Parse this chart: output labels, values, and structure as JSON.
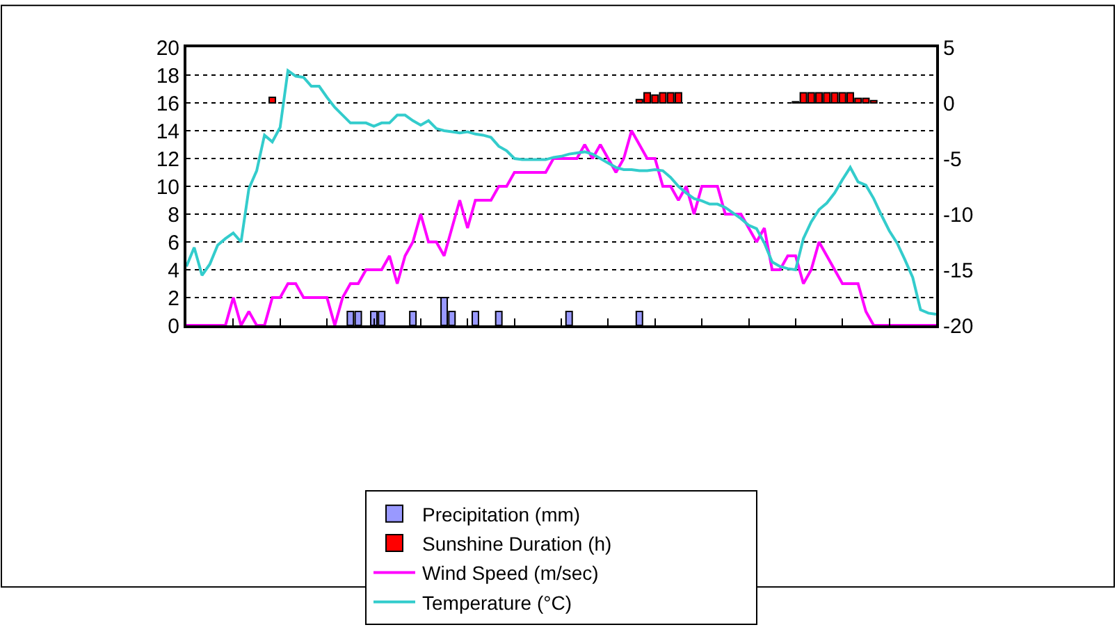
{
  "chart_data": {
    "type": "bar",
    "categories": [
      null,
      null,
      null,
      null,
      null,
      null,
      null,
      null,
      null,
      null,
      null,
      null,
      null,
      null,
      null,
      null,
      null,
      null,
      null,
      null,
      null,
      null,
      null,
      null,
      null,
      null,
      null,
      null,
      null,
      null,
      null,
      null,
      null,
      null,
      null,
      null,
      null,
      null,
      null,
      null,
      null,
      null,
      null,
      null,
      null,
      null,
      null,
      null,
      null,
      null,
      null,
      null,
      null,
      null,
      null,
      null,
      null,
      null,
      null,
      null,
      null,
      null,
      null,
      null,
      null,
      null,
      null,
      null,
      null,
      null,
      null,
      null,
      null,
      null,
      null,
      null,
      null,
      null,
      null,
      null,
      null,
      null,
      null,
      null,
      null,
      null,
      null,
      null,
      null,
      null,
      null,
      null,
      null,
      null,
      null,
      null,
      null
    ],
    "series": [
      {
        "name": "Precipitation (mm)",
        "color": "#9999ff",
        "values": [
          null,
          null,
          null,
          null,
          null,
          null,
          null,
          null,
          null,
          null,
          null,
          null,
          null,
          null,
          null,
          null,
          null,
          null,
          null,
          null,
          null,
          1,
          1,
          null,
          1,
          1,
          null,
          null,
          null,
          1,
          null,
          null,
          null,
          2,
          1,
          null,
          null,
          1,
          null,
          null,
          1,
          null,
          null,
          null,
          null,
          null,
          null,
          null,
          null,
          1,
          null,
          null,
          null,
          null,
          null,
          null,
          null,
          null,
          1,
          null,
          null,
          null,
          null,
          null,
          null,
          null,
          null,
          null,
          null,
          null,
          null,
          null,
          null,
          null,
          null,
          null,
          null,
          null,
          null,
          null,
          null,
          null,
          null,
          null,
          null,
          null,
          null,
          null,
          null,
          null,
          null,
          null,
          null,
          null,
          null,
          null,
          null
        ]
      },
      {
        "name": "Sunshine Duration (h)",
        "axis": "y2",
        "color": "#ff0000",
        "values": [
          null,
          null,
          null,
          null,
          null,
          null,
          null,
          null,
          null,
          null,
          null,
          0.5,
          null,
          null,
          null,
          null,
          null,
          null,
          null,
          null,
          null,
          null,
          null,
          null,
          null,
          null,
          null,
          null,
          null,
          null,
          null,
          null,
          null,
          null,
          null,
          null,
          null,
          null,
          null,
          null,
          null,
          null,
          null,
          null,
          null,
          null,
          null,
          null,
          null,
          null,
          null,
          null,
          null,
          null,
          null,
          null,
          null,
          null,
          0.3,
          0.9,
          0.7,
          0.9,
          0.9,
          0.9,
          null,
          null,
          null,
          null,
          null,
          null,
          null,
          null,
          null,
          null,
          null,
          null,
          null,
          null,
          0.1,
          0.9,
          0.9,
          0.9,
          0.9,
          0.9,
          0.9,
          0.9,
          0.4,
          0.4,
          0.2,
          null,
          null,
          null,
          null,
          null,
          null,
          null,
          null
        ]
      },
      {
        "name": "Wind Speed (m/sec)",
        "type": "line",
        "color": "#ff00ff",
        "values": [
          0,
          0,
          0,
          0,
          0,
          0,
          2,
          0,
          1,
          0,
          0,
          2,
          2,
          3,
          3,
          2,
          2,
          2,
          2,
          0,
          2,
          3,
          3,
          4,
          4,
          4,
          5,
          3,
          5,
          6,
          8,
          6,
          6,
          5,
          7,
          9,
          7,
          9,
          9,
          9,
          10,
          10,
          11,
          11,
          11,
          11,
          11,
          12,
          12,
          12,
          12,
          13,
          12,
          13,
          12,
          11,
          12,
          14,
          13,
          12,
          12,
          10,
          10,
          9,
          10,
          8,
          10,
          10,
          10,
          8,
          8,
          8,
          7,
          6,
          7,
          4,
          4,
          5,
          5,
          3,
          4,
          6,
          5,
          4,
          3,
          3,
          3,
          1,
          0,
          0,
          0,
          0,
          0,
          0,
          0,
          0,
          0
        ]
      },
      {
        "name": "Temperature (°C)",
        "type": "line",
        "axis": "y2",
        "color": "#33cccc",
        "values": [
          -14.7,
          -13.0,
          -15.5,
          -14.5,
          -12.8,
          -12.2,
          -11.7,
          -12.5,
          -7.7,
          -6.1,
          -2.9,
          -3.5,
          -2.2,
          2.9,
          2.4,
          2.3,
          1.5,
          1.5,
          0.5,
          -0.4,
          -1.1,
          -1.8,
          -1.8,
          -1.8,
          -2.1,
          -1.8,
          -1.8,
          -1.1,
          -1.1,
          -1.6,
          -2.0,
          -1.6,
          -2.3,
          -2.5,
          -2.6,
          -2.7,
          -2.6,
          -2.8,
          -2.9,
          -3.1,
          -3.9,
          -4.3,
          -5.0,
          -5.1,
          -5.1,
          -5.1,
          -5.1,
          -4.9,
          -4.8,
          -4.6,
          -4.5,
          -4.4,
          -4.6,
          -5.0,
          -5.4,
          -5.8,
          -6.0,
          -6.0,
          -6.1,
          -6.1,
          -6.0,
          -6.1,
          -6.7,
          -7.5,
          -8.1,
          -8.6,
          -8.8,
          -9.1,
          -9.1,
          -9.4,
          -9.9,
          -10.4,
          -11.0,
          -11.3,
          -12.6,
          -14.3,
          -14.7,
          -14.9,
          -15.0,
          -12.2,
          -10.7,
          -9.6,
          -9.0,
          -8.1,
          -6.9,
          -5.8,
          -7.1,
          -7.4,
          -8.6,
          -10.1,
          -11.5,
          -12.6,
          -14.1,
          -15.7,
          -18.6,
          -18.9,
          -19.0
        ]
      }
    ],
    "ylim": [
      0,
      20
    ],
    "yticks": [
      0,
      2,
      4,
      6,
      8,
      10,
      12,
      14,
      16,
      18,
      20
    ],
    "y2lim": [
      -20,
      5
    ],
    "y2ticks": [
      -20,
      -15,
      -10,
      -5,
      0,
      5
    ],
    "grid": "y",
    "legend": "bottom",
    "marker": "none",
    "line_style": "solid"
  }
}
